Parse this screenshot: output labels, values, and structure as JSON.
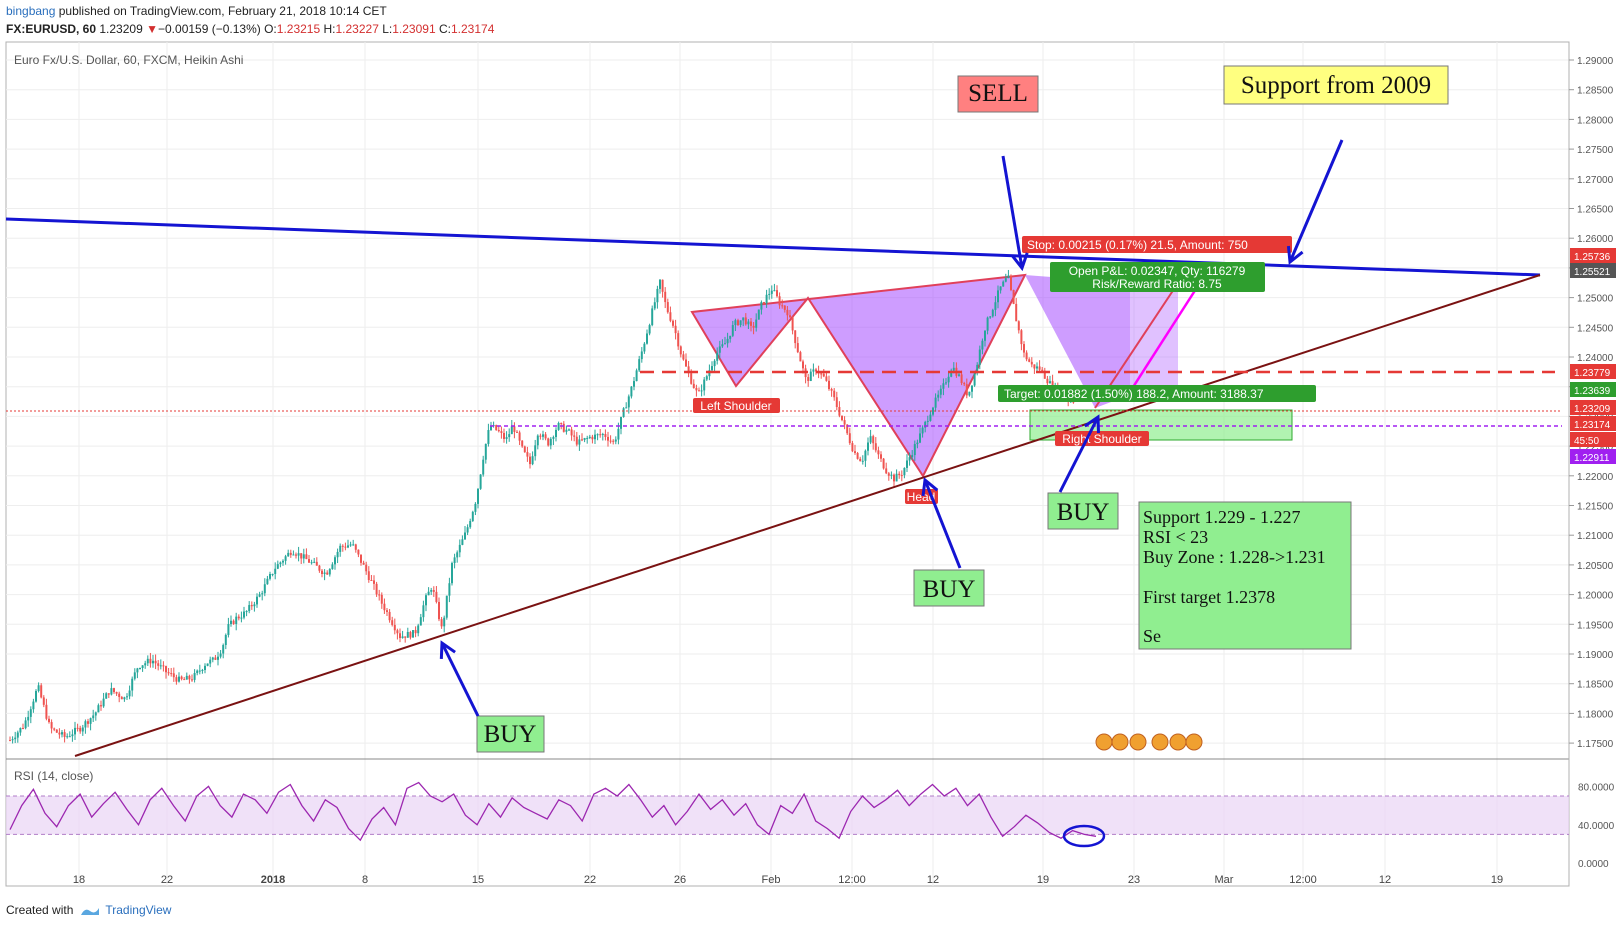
{
  "header": {
    "author": "bingbang",
    "published": "published on TradingView.com, February 21, 2018 10:14 CET",
    "symbol": "FX:EURUSD, 60",
    "last": "1.23209",
    "change": "−0.00159 (−0.13%)",
    "o_label": "O:",
    "o": "1.23215",
    "h_label": "H:",
    "h": "1.23227",
    "l_label": "L:",
    "l": "1.23091",
    "c_label": "C:",
    "c": "1.23174"
  },
  "footer": {
    "created_with": "Created with",
    "brand": "TradingView"
  },
  "colors": {
    "up": "#26a69a",
    "down": "#ef5350",
    "trend_blue": "#1414d2",
    "trend_brown": "#7a1212",
    "pattern": "#a64dff",
    "rsi": "#9c27b0",
    "green_box": "#90ee90"
  },
  "chart_data": [
    {
      "type": "candlestick",
      "title": "Euro Fx/U.S. Dollar, 60, FXCM, Heikin Ashi",
      "x_ticks": [
        "18",
        "22",
        "2018",
        "8",
        "15",
        "22",
        "26",
        "Feb",
        "12:00",
        "12",
        "19",
        "23",
        "Mar",
        "12:00",
        "12",
        "19"
      ],
      "y_ticks": [
        "1.29000",
        "1.28500",
        "1.28000",
        "1.27500",
        "1.27000",
        "1.26500",
        "1.26000",
        "1.25500",
        "1.25000",
        "1.24500",
        "1.24000",
        "1.23500",
        "1.23000",
        "1.22500",
        "1.22000",
        "1.21500",
        "1.21000",
        "1.20500",
        "1.20000",
        "1.19500",
        "1.19000",
        "1.18500",
        "1.18000",
        "1.17500"
      ],
      "ylim": [
        1.174,
        1.292
      ],
      "path_x": [
        0,
        14,
        28,
        40,
        55,
        70,
        85,
        100,
        115,
        128,
        142,
        156,
        170,
        183,
        196,
        204,
        212,
        218,
        226,
        236,
        250,
        265,
        282,
        300,
        316,
        330,
        342,
        356,
        372,
        390,
        405,
        415,
        422,
        432,
        442,
        456,
        466,
        474,
        480,
        488,
        496,
        503,
        512,
        520,
        528,
        538,
        548,
        558,
        568,
        580,
        594,
        604,
        613,
        622,
        632,
        642,
        650,
        656,
        664,
        672,
        680,
        688,
        696,
        706,
        716,
        724,
        734,
        742,
        752,
        762,
        770,
        778,
        788,
        796,
        806,
        814,
        824,
        834,
        844,
        852,
        860,
        868,
        876,
        884,
        892,
        902,
        912,
        922,
        932,
        942,
        950,
        958,
        966,
        974,
        982,
        990,
        998,
        1006,
        1014,
        1022,
        1030,
        1040,
        1050,
        1058,
        1066
      ],
      "path_close": [
        1.1755,
        1.178,
        1.1845,
        1.1775,
        1.176,
        1.1775,
        1.18,
        1.184,
        1.1825,
        1.188,
        1.189,
        1.187,
        1.1855,
        1.186,
        1.1885,
        1.189,
        1.191,
        1.1945,
        1.196,
        1.197,
        1.2,
        1.2045,
        1.2075,
        1.2055,
        1.2035,
        1.208,
        1.2085,
        1.204,
        1.1985,
        1.193,
        1.1935,
        1.199,
        1.2015,
        1.194,
        1.205,
        1.2105,
        1.216,
        1.224,
        1.2285,
        1.2275,
        1.226,
        1.2285,
        1.2245,
        1.222,
        1.2275,
        1.2255,
        1.2285,
        1.2275,
        1.2255,
        1.2265,
        1.227,
        1.2255,
        1.2305,
        1.235,
        1.241,
        1.2475,
        1.2525,
        1.2485,
        1.245,
        1.24,
        1.2365,
        1.2335,
        1.2365,
        1.2405,
        1.2425,
        1.2455,
        1.2465,
        1.2445,
        1.249,
        1.2515,
        1.249,
        1.2475,
        1.241,
        1.236,
        1.238,
        1.2365,
        1.233,
        1.2285,
        1.224,
        1.2225,
        1.2265,
        1.2235,
        1.221,
        1.2195,
        1.2205,
        1.224,
        1.2275,
        1.2315,
        1.2345,
        1.2385,
        1.2365,
        1.2335,
        1.238,
        1.2445,
        1.248,
        1.2515,
        1.2535,
        1.2465,
        1.2405,
        1.2385,
        1.238,
        1.2355,
        1.234,
        1.233,
        1.2325
      ]
    },
    {
      "type": "line",
      "title": "RSI (14, close)",
      "y_ticks": [
        "80.0000",
        "40.0000",
        "0.0000"
      ],
      "ylim": [
        -5,
        95
      ],
      "bands": [
        30,
        70
      ],
      "values": [
        35,
        60,
        77,
        52,
        38,
        60,
        72,
        48,
        62,
        74,
        56,
        40,
        66,
        78,
        60,
        44,
        70,
        80,
        60,
        48,
        72,
        66,
        52,
        74,
        82,
        60,
        44,
        66,
        58,
        36,
        24,
        46,
        58,
        40,
        78,
        84,
        70,
        64,
        72,
        50,
        40,
        62,
        48,
        68,
        58,
        52,
        46,
        66,
        60,
        44,
        72,
        78,
        70,
        82,
        66,
        48,
        60,
        40,
        54,
        72,
        56,
        66,
        50,
        62,
        40,
        30,
        60,
        52,
        72,
        44,
        36,
        26,
        54,
        70,
        58,
        66,
        76,
        60,
        72,
        82,
        70,
        78,
        60,
        72,
        48,
        28,
        38,
        50,
        42,
        32,
        26,
        34,
        30,
        28
      ],
      "price_labels": [
        "1.25736",
        "1.25521",
        "1.23779",
        "1.23639",
        "1.23209",
        "1.23174",
        "45:50",
        "1.22911"
      ]
    }
  ],
  "annotations": {
    "sell": "SELL",
    "buy": "BUY",
    "support_2009": "Support from 2009",
    "left_shoulder": "Left Shoulder",
    "head": "Head",
    "right_shoulder": "Right Shoulder",
    "stop": "Stop: 0.00215 (0.17%) 21.5, Amount: 750",
    "open_pl": "Open P&L: 0.02347, Qty: 116279",
    "risk_reward": "Risk/Reward Ratio: 8.75",
    "target": "Target: 0.01882 (1.50%) 188.2, Amount: 3188.37",
    "note_lines": [
      "Support  1.229 - 1.227",
      "RSI < 23",
      "Buy Zone : 1.228->1.231",
      "",
      "First target 1.2378",
      "",
      "Se"
    ]
  }
}
